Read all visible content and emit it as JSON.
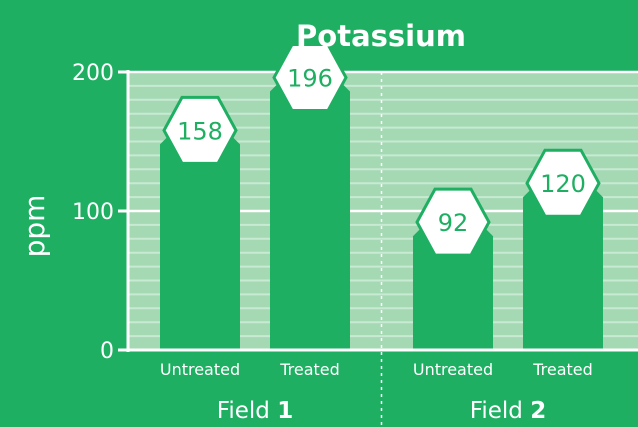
{
  "chart_data": {
    "type": "bar",
    "title": "Potassium",
    "ylabel": "ppm",
    "xlabel": "",
    "ylim": [
      0,
      200
    ],
    "yticks": [
      0,
      100,
      200
    ],
    "grid": true,
    "groups": [
      {
        "prefix": "Field ",
        "number": "1",
        "categories": [
          "Untreated",
          "Treated"
        ],
        "values": [
          158,
          196
        ]
      },
      {
        "prefix": "Field ",
        "number": "2",
        "categories": [
          "Untreated",
          "Treated"
        ],
        "values": [
          92,
          120
        ]
      }
    ]
  },
  "colors": {
    "background": "#1faf62",
    "plot_area": "#a4d9b4",
    "bar": "#1faf62",
    "label_badge": "#ffffff",
    "text": "#ffffff"
  }
}
